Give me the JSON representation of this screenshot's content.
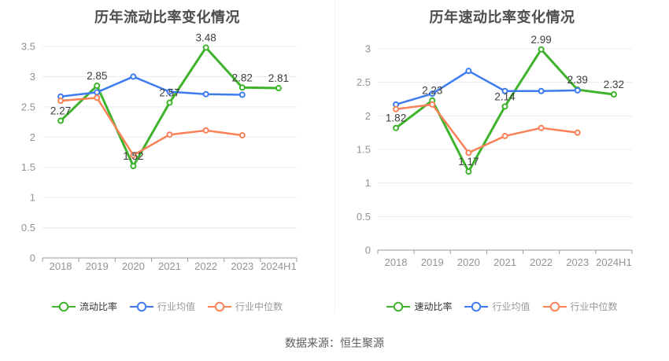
{
  "page": {
    "source": "数据来源：恒生聚源"
  },
  "colors": {
    "green": "#3eb32b",
    "blue": "#3e7bf0",
    "orange": "#fa8157",
    "grid": "#e7ebf2",
    "axis": "#999999",
    "tick_label": "#909399",
    "data_label": "#3c3c3c",
    "title": "#4d4d4d",
    "legend_active": "#333333",
    "legend_muted": "#999999"
  },
  "chart_data": [
    {
      "type": "line",
      "title": "历年流动比率变化情况",
      "categories": [
        "2018",
        "2019",
        "2020",
        "2021",
        "2022",
        "2023",
        "2024H1"
      ],
      "ylim": [
        0,
        3.5
      ],
      "ytick_step": 0.5,
      "grid": true,
      "legend_position": "bottom",
      "series": [
        {
          "name": "流动比率",
          "key": "current-ratio",
          "color_key": "green",
          "show_labels": true,
          "values": [
            2.27,
            2.85,
            1.52,
            2.57,
            3.48,
            2.82,
            2.81
          ]
        },
        {
          "name": "行业均值",
          "key": "industry-mean",
          "color_key": "blue",
          "show_labels": false,
          "values": [
            2.67,
            2.74,
            3.0,
            2.75,
            2.71,
            2.7
          ]
        },
        {
          "name": "行业中位数",
          "key": "industry-median",
          "color_key": "orange",
          "show_labels": false,
          "values": [
            2.6,
            2.65,
            1.7,
            2.04,
            2.11,
            2.03
          ]
        }
      ]
    },
    {
      "type": "line",
      "title": "历年速动比率变化情况",
      "categories": [
        "2018",
        "2019",
        "2020",
        "2021",
        "2022",
        "2023",
        "2024H1"
      ],
      "ylim": [
        0,
        3
      ],
      "ytick_step": 0.5,
      "grid": true,
      "legend_position": "bottom",
      "series": [
        {
          "name": "速动比率",
          "key": "quick-ratio",
          "color_key": "green",
          "show_labels": true,
          "values": [
            1.82,
            2.23,
            1.17,
            2.14,
            2.99,
            2.39,
            2.32
          ]
        },
        {
          "name": "行业均值",
          "key": "industry-mean",
          "color_key": "blue",
          "show_labels": false,
          "values": [
            2.17,
            2.33,
            2.67,
            2.37,
            2.37,
            2.38
          ]
        },
        {
          "name": "行业中位数",
          "key": "industry-median",
          "color_key": "orange",
          "show_labels": false,
          "values": [
            2.1,
            2.17,
            1.45,
            1.7,
            1.82,
            1.75
          ]
        }
      ]
    }
  ]
}
